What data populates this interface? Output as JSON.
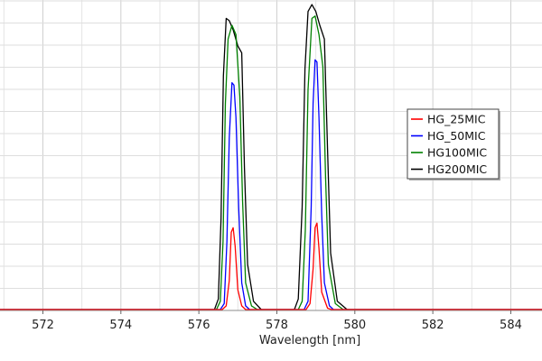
{
  "chart_data": {
    "type": "line",
    "title": "",
    "xlabel": "Wavelength [nm]",
    "ylabel": "",
    "xlim": [
      570.9,
      584.8
    ],
    "ylim": [
      0,
      1.35
    ],
    "x_ticks": [
      572,
      574,
      576,
      578,
      580,
      582,
      584
    ],
    "grid": true,
    "legend_position": "right",
    "series": [
      {
        "name": "HG_25MIC",
        "color": "#ff0000",
        "points": [
          [
            570.9,
            0.004
          ],
          [
            576.6,
            0.004
          ],
          [
            576.7,
            0.02
          ],
          [
            576.78,
            0.13
          ],
          [
            576.83,
            0.34
          ],
          [
            576.88,
            0.36
          ],
          [
            576.93,
            0.28
          ],
          [
            577.0,
            0.09
          ],
          [
            577.1,
            0.02
          ],
          [
            577.2,
            0.004
          ],
          [
            578.75,
            0.004
          ],
          [
            578.85,
            0.03
          ],
          [
            578.93,
            0.18
          ],
          [
            578.98,
            0.36
          ],
          [
            579.03,
            0.38
          ],
          [
            579.08,
            0.27
          ],
          [
            579.15,
            0.08
          ],
          [
            579.3,
            0.01
          ],
          [
            579.4,
            0.004
          ],
          [
            584.8,
            0.004
          ]
        ]
      },
      {
        "name": "HG_50MIC",
        "color": "#0000ff",
        "points": [
          [
            570.9,
            0.004
          ],
          [
            576.55,
            0.004
          ],
          [
            576.65,
            0.03
          ],
          [
            576.72,
            0.3
          ],
          [
            576.78,
            0.75
          ],
          [
            576.85,
            0.99
          ],
          [
            576.9,
            0.98
          ],
          [
            576.95,
            0.84
          ],
          [
            577.02,
            0.45
          ],
          [
            577.1,
            0.12
          ],
          [
            577.2,
            0.02
          ],
          [
            577.3,
            0.004
          ],
          [
            578.7,
            0.004
          ],
          [
            578.8,
            0.04
          ],
          [
            578.88,
            0.45
          ],
          [
            578.93,
            0.9
          ],
          [
            578.98,
            1.09
          ],
          [
            579.03,
            1.08
          ],
          [
            579.08,
            0.84
          ],
          [
            579.15,
            0.42
          ],
          [
            579.22,
            0.12
          ],
          [
            579.35,
            0.02
          ],
          [
            579.45,
            0.004
          ],
          [
            584.8,
            0.004
          ]
        ]
      },
      {
        "name": "HG100MIC",
        "color": "#008000",
        "points": [
          [
            570.9,
            0.004
          ],
          [
            576.45,
            0.004
          ],
          [
            576.55,
            0.04
          ],
          [
            576.62,
            0.3
          ],
          [
            576.68,
            0.9
          ],
          [
            576.75,
            1.18
          ],
          [
            576.85,
            1.24
          ],
          [
            576.95,
            1.2
          ],
          [
            577.05,
            0.93
          ],
          [
            577.12,
            0.48
          ],
          [
            577.2,
            0.12
          ],
          [
            577.35,
            0.02
          ],
          [
            577.5,
            0.004
          ],
          [
            578.55,
            0.004
          ],
          [
            578.65,
            0.04
          ],
          [
            578.73,
            0.35
          ],
          [
            578.8,
            0.96
          ],
          [
            578.9,
            1.27
          ],
          [
            578.98,
            1.28
          ],
          [
            579.08,
            1.2
          ],
          [
            579.18,
            1.06
          ],
          [
            579.25,
            0.58
          ],
          [
            579.32,
            0.2
          ],
          [
            579.5,
            0.03
          ],
          [
            579.7,
            0.004
          ],
          [
            584.8,
            0.004
          ]
        ]
      },
      {
        "name": "HG200MIC",
        "color": "#000000",
        "points": [
          [
            570.9,
            0.004
          ],
          [
            576.4,
            0.004
          ],
          [
            576.5,
            0.05
          ],
          [
            576.57,
            0.4
          ],
          [
            576.63,
            1.02
          ],
          [
            576.7,
            1.27
          ],
          [
            576.78,
            1.26
          ],
          [
            576.88,
            1.22
          ],
          [
            577.0,
            1.15
          ],
          [
            577.1,
            1.12
          ],
          [
            577.17,
            0.62
          ],
          [
            577.25,
            0.2
          ],
          [
            577.4,
            0.04
          ],
          [
            577.6,
            0.004
          ],
          [
            578.45,
            0.004
          ],
          [
            578.55,
            0.05
          ],
          [
            578.65,
            0.45
          ],
          [
            578.72,
            1.05
          ],
          [
            578.8,
            1.3
          ],
          [
            578.9,
            1.33
          ],
          [
            579.0,
            1.3
          ],
          [
            579.1,
            1.24
          ],
          [
            579.22,
            1.18
          ],
          [
            579.3,
            0.7
          ],
          [
            579.38,
            0.25
          ],
          [
            579.55,
            0.04
          ],
          [
            579.8,
            0.004
          ],
          [
            584.8,
            0.004
          ]
        ]
      }
    ]
  }
}
